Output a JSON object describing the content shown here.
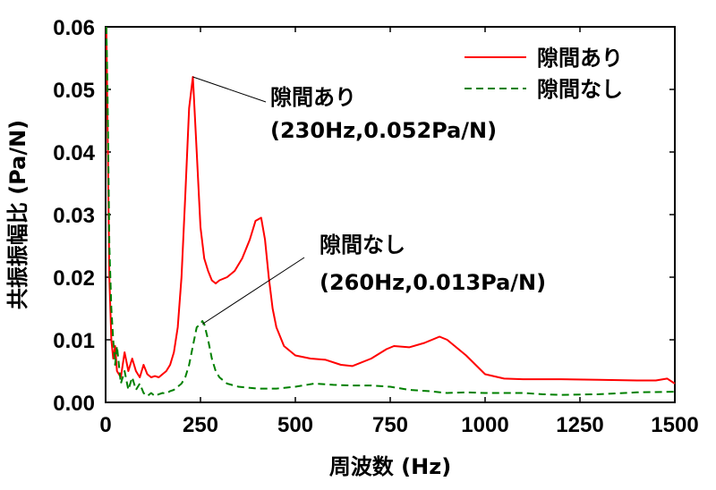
{
  "chart_data": {
    "type": "line",
    "xlabel": "周波数 (Hz)",
    "ylabel": "共振振幅比 (Pa/N)",
    "xlim": [
      0,
      1500
    ],
    "ylim": [
      0,
      0.06
    ],
    "xticks": [
      0,
      250,
      500,
      750,
      1000,
      1250,
      1500
    ],
    "yticks": [
      0.0,
      0.01,
      0.02,
      0.03,
      0.04,
      0.05,
      0.06
    ],
    "xtick_labels": [
      "0",
      "250",
      "500",
      "750",
      "1000",
      "1250",
      "1500"
    ],
    "ytick_labels": [
      "0.00",
      "0.01",
      "0.02",
      "0.03",
      "0.04",
      "0.05",
      "0.06"
    ],
    "legend_position": "top-right",
    "series": [
      {
        "name": "隙間あり",
        "color": "#ff0000",
        "style": "solid",
        "x": [
          2,
          5,
          10,
          15,
          20,
          25,
          30,
          40,
          50,
          60,
          70,
          80,
          90,
          100,
          110,
          120,
          130,
          140,
          150,
          160,
          170,
          180,
          190,
          200,
          210,
          220,
          230,
          240,
          250,
          260,
          270,
          280,
          290,
          300,
          320,
          340,
          360,
          380,
          395,
          410,
          420,
          430,
          440,
          450,
          470,
          500,
          540,
          580,
          620,
          650,
          700,
          740,
          760,
          800,
          840,
          880,
          900,
          950,
          1000,
          1050,
          1100,
          1200,
          1300,
          1400,
          1450,
          1480,
          1500
        ],
        "y": [
          0.06,
          0.045,
          0.02,
          0.01,
          0.007,
          0.009,
          0.005,
          0.004,
          0.008,
          0.005,
          0.007,
          0.005,
          0.004,
          0.006,
          0.0045,
          0.004,
          0.0042,
          0.004,
          0.0045,
          0.005,
          0.006,
          0.008,
          0.012,
          0.02,
          0.033,
          0.047,
          0.052,
          0.04,
          0.028,
          0.023,
          0.021,
          0.0195,
          0.019,
          0.0195,
          0.02,
          0.021,
          0.023,
          0.026,
          0.029,
          0.0295,
          0.026,
          0.02,
          0.015,
          0.012,
          0.009,
          0.0075,
          0.007,
          0.0068,
          0.006,
          0.0058,
          0.007,
          0.0085,
          0.009,
          0.0088,
          0.0095,
          0.0105,
          0.01,
          0.0075,
          0.0045,
          0.0038,
          0.0037,
          0.0037,
          0.0036,
          0.0035,
          0.0035,
          0.0038,
          0.003
        ]
      },
      {
        "name": "隙間なし",
        "color": "#008000",
        "style": "dashed",
        "x": [
          2,
          5,
          10,
          15,
          20,
          25,
          30,
          40,
          50,
          60,
          70,
          80,
          90,
          100,
          110,
          120,
          130,
          140,
          150,
          160,
          170,
          180,
          190,
          200,
          210,
          220,
          230,
          240,
          250,
          255,
          260,
          270,
          280,
          290,
          300,
          320,
          350,
          400,
          450,
          500,
          550,
          600,
          650,
          700,
          750,
          800,
          850,
          900,
          950,
          1000,
          1050,
          1100,
          1150,
          1200,
          1300,
          1400,
          1500
        ],
        "y": [
          0.06,
          0.05,
          0.025,
          0.015,
          0.01,
          0.006,
          0.009,
          0.003,
          0.005,
          0.002,
          0.004,
          0.002,
          0.003,
          0.0015,
          0.001,
          0.0015,
          0.001,
          0.0013,
          0.0015,
          0.0014,
          0.0018,
          0.002,
          0.0025,
          0.003,
          0.004,
          0.006,
          0.009,
          0.012,
          0.0125,
          0.013,
          0.0125,
          0.01,
          0.007,
          0.005,
          0.004,
          0.003,
          0.0025,
          0.0022,
          0.0022,
          0.0025,
          0.003,
          0.0028,
          0.0027,
          0.0027,
          0.0025,
          0.002,
          0.0018,
          0.0015,
          0.0016,
          0.0015,
          0.0015,
          0.0015,
          0.0013,
          0.0012,
          0.0013,
          0.0016,
          0.0017
        ]
      }
    ],
    "annotations": [
      {
        "text_line1": "隙間あり",
        "text_line2": "(230Hz,0.052Pa/N)",
        "x": 230,
        "y": 0.052
      },
      {
        "text_line1": "隙間なし",
        "text_line2": "(260Hz,0.013Pa/N)",
        "x": 255,
        "y": 0.0125
      }
    ]
  }
}
